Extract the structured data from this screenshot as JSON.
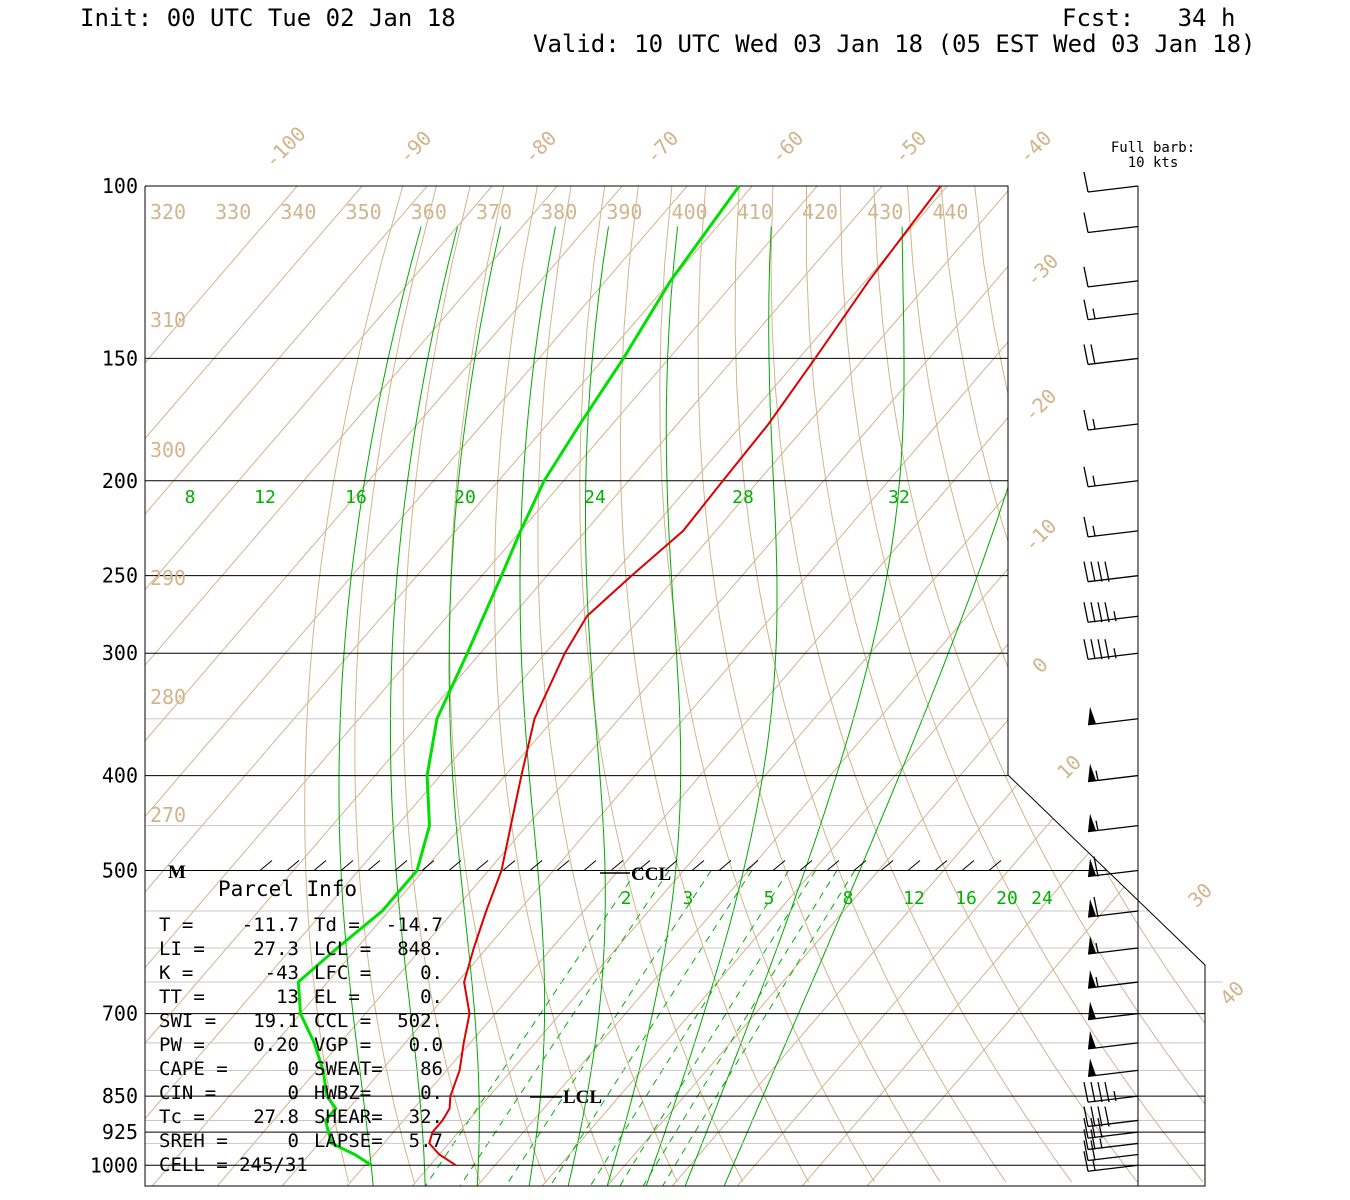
{
  "header": {
    "init": "Init: 00 UTC Tue 02 Jan 18",
    "fcst": "Fcst:   34 h",
    "valid": "Valid: 10 UTC Wed 03 Jan 18 (05 EST Wed 03 Jan 18)"
  },
  "barb_note": {
    "line1": "Full barb:",
    "line2": "10 kts"
  },
  "colors": {
    "temperature": "#dd0000",
    "dewpoint": "#00e000",
    "isotherm": "#d2b48c",
    "mixing_ratio": "#00aa00",
    "frame": "#000000"
  },
  "chart_data": {
    "type": "line",
    "title": "",
    "y_axis": "pressure (hPa), log scale, decreasing upward",
    "pressure_ticks": [
      100,
      150,
      200,
      250,
      300,
      400,
      500,
      700,
      850,
      925,
      1000
    ],
    "isotherm_labels": [
      -100,
      -90,
      -80,
      -70,
      -60,
      -50,
      -40,
      -30,
      -20,
      -10,
      0,
      10,
      30,
      40
    ],
    "theta_labels_top": [
      320,
      330,
      340,
      350,
      360,
      370,
      380,
      390,
      400,
      410,
      420,
      430,
      440
    ],
    "theta_labels_side": [
      310,
      300,
      290,
      280,
      270
    ],
    "mixing_ratio_labels_upper": [
      8,
      12,
      16,
      20,
      24,
      28,
      32
    ],
    "mixing_ratio_labels_lower": [
      2,
      3,
      5,
      8,
      12,
      16,
      20,
      24
    ],
    "series": [
      {
        "name": "",
        "values": [
          [
            1000,
            -6
          ],
          [
            975,
            -10
          ],
          [
            950,
            -13
          ],
          [
            925,
            -14
          ],
          [
            900,
            -14
          ],
          [
            875,
            -14.5
          ],
          [
            850,
            -16
          ],
          [
            800,
            -18
          ],
          [
            750,
            -21
          ],
          [
            700,
            -24
          ],
          [
            650,
            -29
          ],
          [
            600,
            -32
          ],
          [
            550,
            -35
          ],
          [
            500,
            -38
          ],
          [
            450,
            -42.5
          ],
          [
            400,
            -47.5
          ],
          [
            350,
            -53
          ],
          [
            300,
            -57
          ],
          [
            275,
            -58.5
          ],
          [
            250,
            -57
          ],
          [
            225,
            -55
          ],
          [
            200,
            -55.5
          ],
          [
            175,
            -56
          ],
          [
            150,
            -57.5
          ],
          [
            125,
            -59.5
          ],
          [
            100,
            -61
          ]
        ]
      },
      {
        "name": "",
        "values": [
          [
            1000,
            -19
          ],
          [
            975,
            -23
          ],
          [
            950,
            -28
          ],
          [
            925,
            -30
          ],
          [
            900,
            -32
          ],
          [
            875,
            -32
          ],
          [
            850,
            -35
          ],
          [
            800,
            -39
          ],
          [
            750,
            -44
          ],
          [
            700,
            -50
          ],
          [
            650,
            -54.5
          ],
          [
            600,
            -53
          ],
          [
            550,
            -51
          ],
          [
            500,
            -51
          ],
          [
            450,
            -55
          ],
          [
            400,
            -62
          ],
          [
            350,
            -68
          ],
          [
            300,
            -72
          ],
          [
            250,
            -77
          ],
          [
            225,
            -80
          ],
          [
            200,
            -83
          ],
          [
            175,
            -85
          ],
          [
            150,
            -87
          ],
          [
            125,
            -90
          ],
          [
            100,
            -92
          ]
        ]
      }
    ],
    "wind_barbs_kts": [
      [
        1000,
        15
      ],
      [
        975,
        20
      ],
      [
        950,
        25
      ],
      [
        925,
        30
      ],
      [
        900,
        40
      ],
      [
        850,
        45
      ],
      [
        800,
        50
      ],
      [
        750,
        50
      ],
      [
        700,
        50
      ],
      [
        650,
        55
      ],
      [
        600,
        55
      ],
      [
        550,
        60
      ],
      [
        500,
        60
      ],
      [
        450,
        55
      ],
      [
        400,
        55
      ],
      [
        350,
        50
      ],
      [
        300,
        45
      ],
      [
        275,
        45
      ],
      [
        250,
        40
      ],
      [
        225,
        15
      ],
      [
        200,
        15
      ],
      [
        175,
        15
      ],
      [
        150,
        20
      ],
      [
        135,
        15
      ],
      [
        125,
        10
      ],
      [
        110,
        10
      ],
      [
        100,
        10
      ]
    ],
    "annotations": {
      "ccl": "CCL",
      "lcl": "LCL",
      "m": "M",
      "lcl_p": 848,
      "ccl_p": 502
    }
  },
  "parcel_info": {
    "title": "Parcel Info",
    "rows": [
      [
        "T  =",
        "-11.7",
        "Td =",
        "-14.7"
      ],
      [
        "LI =",
        "27.3",
        "LCL =",
        "848."
      ],
      [
        "K  =",
        "-43",
        "LFC =",
        "0."
      ],
      [
        "TT =",
        "13",
        "EL  =",
        "0."
      ],
      [
        "SWI =",
        "19.1",
        "CCL =",
        "502."
      ],
      [
        "PW =",
        "0.20",
        "VGP =",
        "0.0"
      ],
      [
        "CAPE =",
        "0",
        "SWEAT=",
        "86"
      ],
      [
        "CIN =",
        "0",
        "HWBZ=",
        "0."
      ],
      [
        "Tc =",
        "27.8",
        "SHEAR=",
        "32."
      ],
      [
        "SREH =",
        "0",
        "LAPSE=",
        "5.7"
      ]
    ],
    "cell": "CELL = 245/31"
  }
}
